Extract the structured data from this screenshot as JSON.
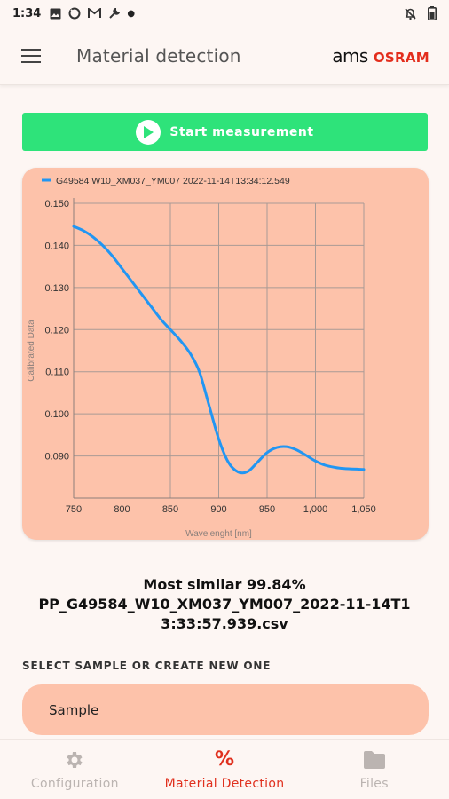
{
  "status_bar": {
    "time": "1:34",
    "icons": [
      "image-icon",
      "sync-icon",
      "gmail-icon",
      "wrench-icon",
      "dot-icon"
    ],
    "right_icons": [
      "notifications-off-icon",
      "battery-icon"
    ]
  },
  "app_bar": {
    "title": "Material detection",
    "logo_ams": "ams",
    "logo_osram": "OSRAM"
  },
  "start_button": {
    "label": "Start measurement"
  },
  "chart_data": {
    "type": "line",
    "title": "",
    "xlabel": "Wavelenght [nm]",
    "ylabel": "Calibrated Data",
    "xlim": [
      750,
      1050
    ],
    "ylim": [
      0.08,
      0.15
    ],
    "xticks": [
      "750",
      "800",
      "850",
      "900",
      "950",
      "1,000",
      "1,050"
    ],
    "yticks": [
      "0.090",
      "0.100",
      "0.110",
      "0.120",
      "0.130",
      "0.140",
      "0.150"
    ],
    "grid": true,
    "legend": "top-left",
    "series": [
      {
        "name": "G49584 W10_XM037_YM007 2022-11-14T13:34:12.549",
        "color": "#2196f3",
        "x": [
          750,
          760,
          770,
          780,
          790,
          800,
          810,
          820,
          830,
          840,
          850,
          860,
          870,
          880,
          890,
          900,
          910,
          920,
          930,
          940,
          950,
          960,
          970,
          980,
          990,
          1000,
          1010,
          1020,
          1030,
          1050
        ],
        "y": [
          0.1445,
          0.1435,
          0.142,
          0.14,
          0.1375,
          0.1345,
          0.1315,
          0.1285,
          0.1255,
          0.1225,
          0.12,
          0.1175,
          0.1145,
          0.11,
          0.102,
          0.094,
          0.0885,
          0.0862,
          0.0863,
          0.0885,
          0.0908,
          0.092,
          0.0922,
          0.0915,
          0.0902,
          0.0888,
          0.0878,
          0.0873,
          0.087,
          0.0868
        ]
      }
    ]
  },
  "result": {
    "line1": "Most similar 99.84%",
    "line2": "PP_G49584_W10_XM037_YM007_2022-11-14T1",
    "line3": "3:33:57.939.csv"
  },
  "select_section": {
    "label": "SELECT SAMPLE OR CREATE NEW ONE",
    "sample_value": "Sample"
  },
  "bottom_nav": {
    "items": [
      {
        "label": "Configuration",
        "icon": "gear-icon",
        "active": false
      },
      {
        "label": "Material Detection",
        "icon": "%",
        "active": true
      },
      {
        "label": "Files",
        "icon": "folder-icon",
        "active": false
      }
    ]
  },
  "colors": {
    "accent": "#e0301e",
    "start_button": "#2ee37a",
    "card": "#fdc2aa",
    "background": "#fdf6f3",
    "line": "#2196f3"
  }
}
